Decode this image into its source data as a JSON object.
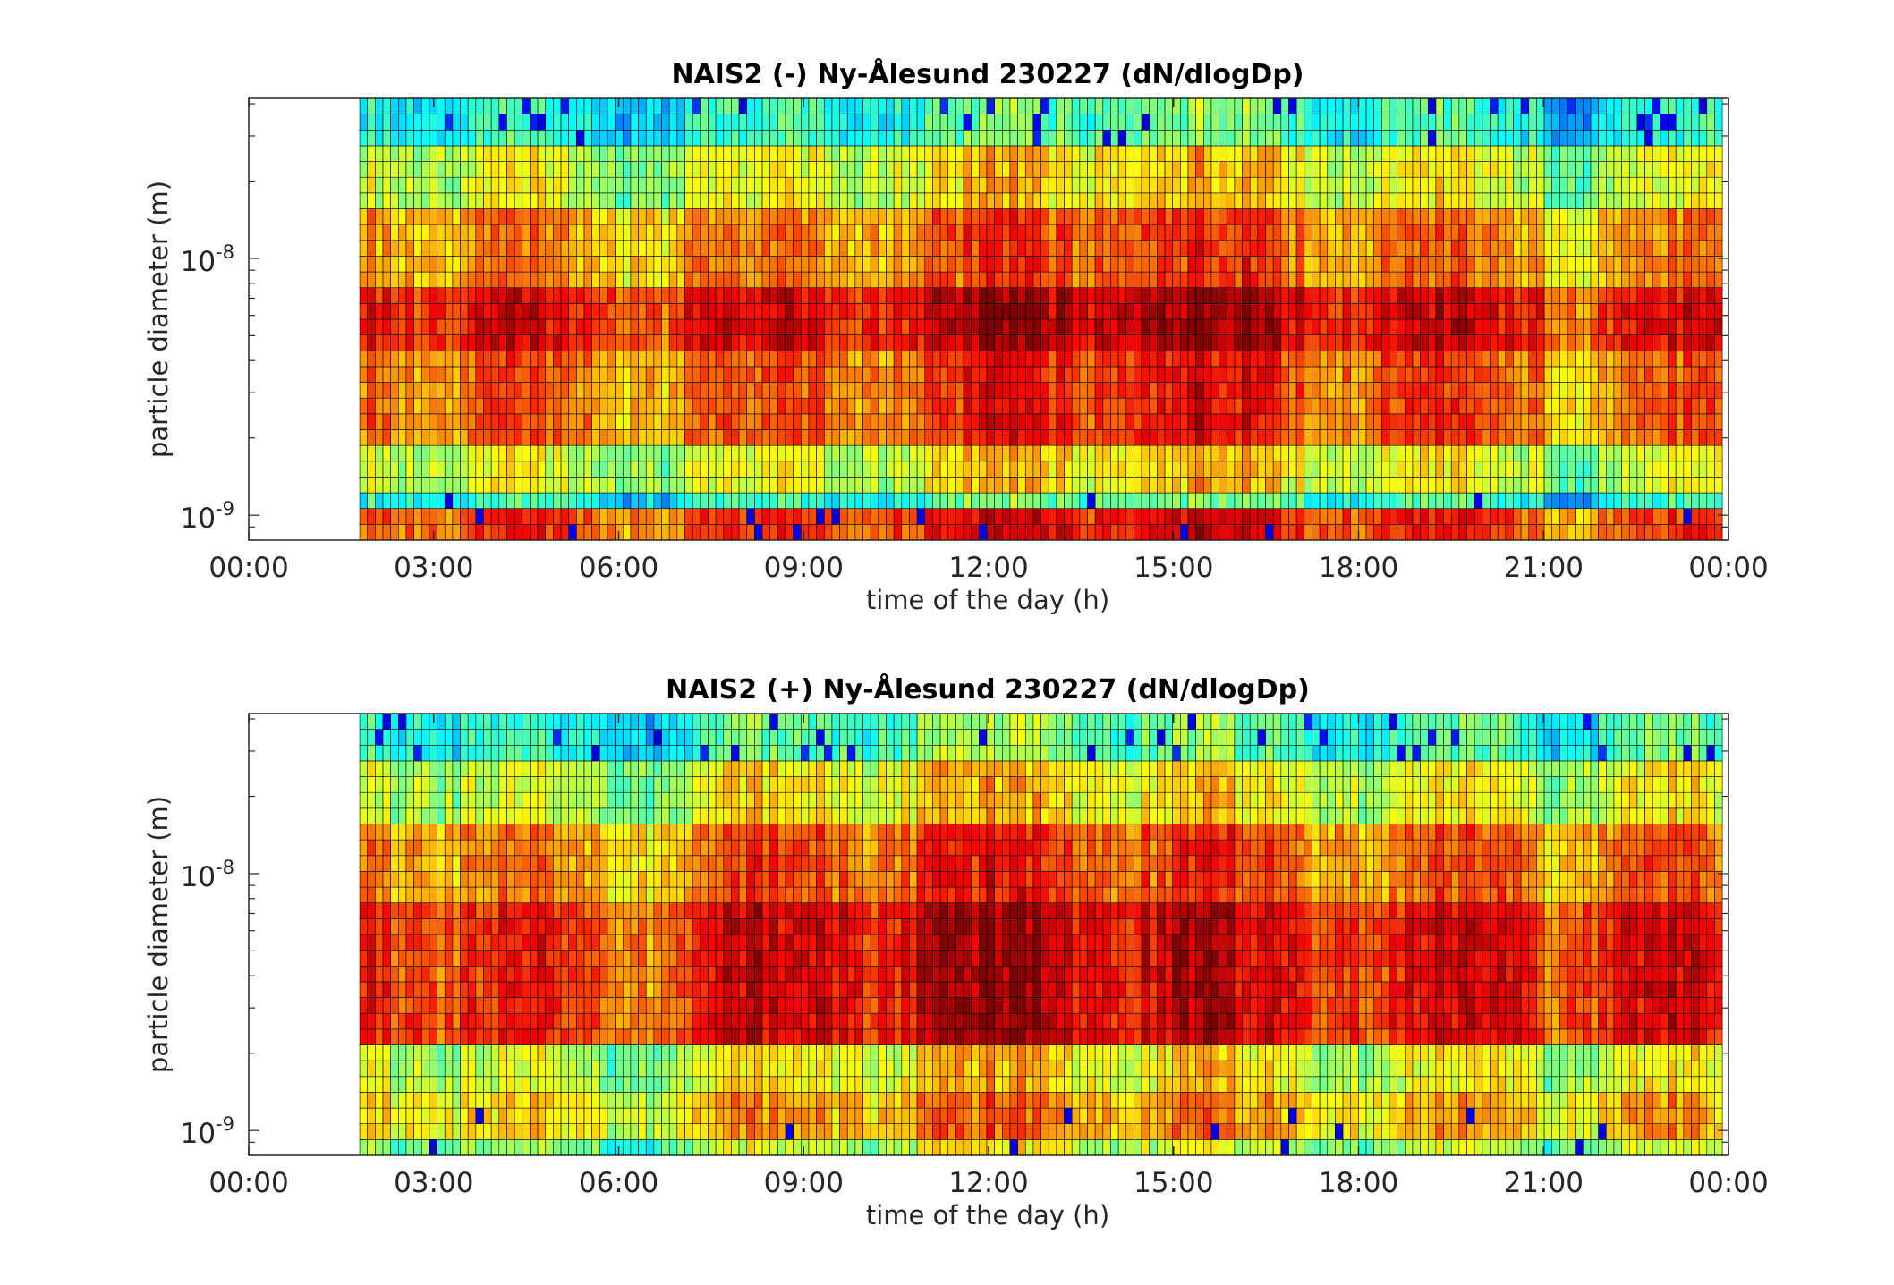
{
  "chart_data": [
    {
      "type": "heatmap",
      "title": "NAIS2 (-) Ny-Ålesund 230227 (dN/dlogDp)",
      "xlabel": "time of the day (h)",
      "ylabel": "particle diameter (m)",
      "x_tick_labels": [
        "00:00",
        "03:00",
        "06:00",
        "09:00",
        "12:00",
        "15:00",
        "18:00",
        "21:00",
        "00:00"
      ],
      "x_ticks_hours": [
        0,
        3,
        6,
        9,
        12,
        15,
        18,
        21,
        24
      ],
      "y_scale": "log",
      "y_tick_labels": [
        {
          "base": "10",
          "exp": "-9"
        },
        {
          "base": "10",
          "exp": "-8"
        }
      ],
      "y_ticks": [
        1e-09,
        1e-08
      ],
      "xlim_hours": [
        0,
        24
      ],
      "ylim": [
        8e-10,
        4.2e-08
      ],
      "data_start_hour": 1.8,
      "data_end_hour": 23.9,
      "colormap": "jet",
      "dominant_diameter_m": 6.5e-09,
      "blank_region_hours": [
        0,
        1.8
      ],
      "bands": [
        {
          "d_min": 8e-10,
          "d_max": 1.05e-09,
          "level": 0.8
        },
        {
          "d_min": 1.05e-09,
          "d_max": 1.3e-09,
          "level": 0.4
        },
        {
          "d_min": 1.3e-09,
          "d_max": 2e-09,
          "level": 0.58
        },
        {
          "d_min": 2e-09,
          "d_max": 4.5e-09,
          "level": 0.76
        },
        {
          "d_min": 4.5e-09,
          "d_max": 8e-09,
          "level": 0.86
        },
        {
          "d_min": 8e-09,
          "d_max": 1.6e-08,
          "level": 0.72
        },
        {
          "d_min": 1.6e-08,
          "d_max": 2.6e-08,
          "level": 0.58
        },
        {
          "d_min": 2.6e-08,
          "d_max": 4.2e-08,
          "level": 0.4
        }
      ]
    },
    {
      "type": "heatmap",
      "title": "NAIS2 (+) Ny-Ålesund 230227 (dN/dlogDp)",
      "xlabel": "time of the day (h)",
      "ylabel": "particle diameter (m)",
      "x_tick_labels": [
        "00:00",
        "03:00",
        "06:00",
        "09:00",
        "12:00",
        "15:00",
        "18:00",
        "21:00",
        "00:00"
      ],
      "x_ticks_hours": [
        0,
        3,
        6,
        9,
        12,
        15,
        18,
        21,
        24
      ],
      "y_scale": "log",
      "y_tick_labels": [
        {
          "base": "10",
          "exp": "-9"
        },
        {
          "base": "10",
          "exp": "-8"
        }
      ],
      "y_ticks": [
        1e-09,
        1e-08
      ],
      "xlim_hours": [
        0,
        24
      ],
      "ylim": [
        8e-10,
        4.2e-08
      ],
      "data_start_hour": 1.8,
      "data_end_hour": 23.9,
      "colormap": "jet",
      "dominant_diameter_m": 3.8e-09,
      "blank_region_hours": [
        0,
        1.8
      ],
      "bands": [
        {
          "d_min": 8e-10,
          "d_max": 9.2e-10,
          "level": 0.52
        },
        {
          "d_min": 9.2e-10,
          "d_max": 1.5e-09,
          "level": 0.66
        },
        {
          "d_min": 1.5e-09,
          "d_max": 2.2e-09,
          "level": 0.58
        },
        {
          "d_min": 2.2e-09,
          "d_max": 8e-09,
          "level": 0.84
        },
        {
          "d_min": 8e-09,
          "d_max": 1.6e-08,
          "level": 0.74
        },
        {
          "d_min": 1.6e-08,
          "d_max": 2.6e-08,
          "level": 0.58
        },
        {
          "d_min": 2.6e-08,
          "d_max": 4.2e-08,
          "level": 0.42
        }
      ]
    }
  ]
}
